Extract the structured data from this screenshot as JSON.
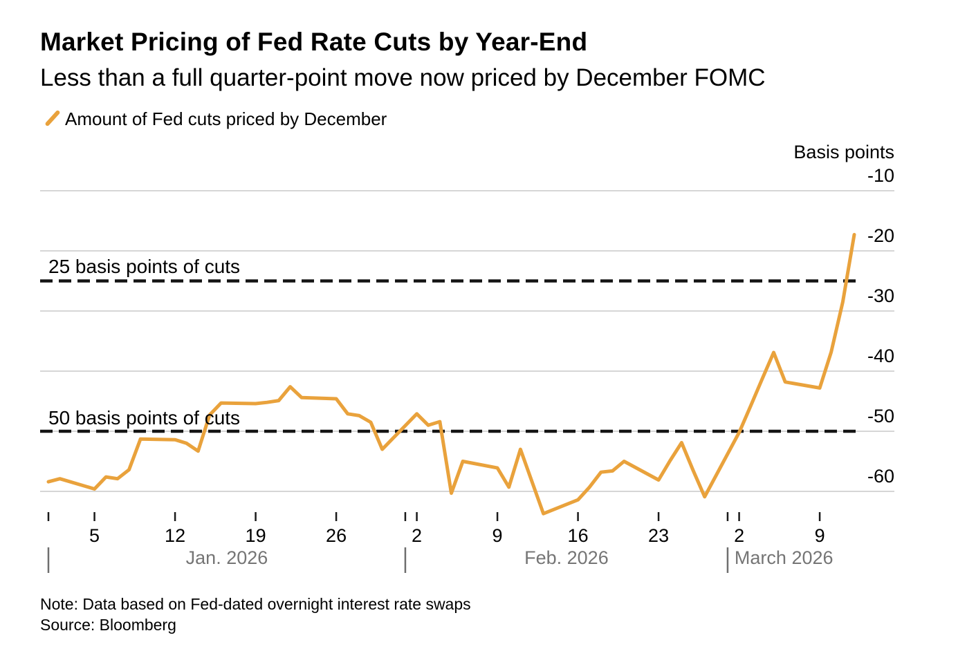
{
  "header": {
    "title": "Market Pricing of Fed Rate Cuts by Year-End",
    "subtitle": "Less than a full quarter-point move now priced by December FOMC"
  },
  "legend": {
    "marker": "orange-slash",
    "label": "Amount of Fed cuts priced by December"
  },
  "footer": {
    "note": "Note: Data based on Fed-dated overnight interest rate swaps",
    "source": "Source: Bloomberg"
  },
  "colors": {
    "series_orange": "#E9A23C",
    "gridline_gray": "#C9C9C9",
    "reference_black": "#141414",
    "tick_black": "#1a1a1a",
    "month_gray": "#757575",
    "separator_gray": "#6e6e6e"
  },
  "chart_data": {
    "type": "line",
    "title": "Market Pricing of Fed Rate Cuts by Year-End",
    "subtitle": "Less than a full quarter-point move now priced by December FOMC",
    "y_axis": {
      "title": "Basis points",
      "side": "right",
      "ticks": [
        -10,
        -20,
        -30,
        -40,
        -50,
        -60
      ],
      "range": [
        -66,
        -10
      ],
      "gridlines": true
    },
    "x_axis": {
      "start_date": "2026-01-01",
      "unit": "days_from_start",
      "week_ticks": [
        {
          "offset": 4,
          "label": "5"
        },
        {
          "offset": 11,
          "label": "12"
        },
        {
          "offset": 18,
          "label": "19"
        },
        {
          "offset": 25,
          "label": "26"
        },
        {
          "offset": 32,
          "label": "2"
        },
        {
          "offset": 39,
          "label": "9"
        },
        {
          "offset": 46,
          "label": "16"
        },
        {
          "offset": 53,
          "label": "23"
        },
        {
          "offset": 60,
          "label": "2"
        },
        {
          "offset": 67,
          "label": "9"
        }
      ],
      "month_boundaries": [
        0,
        31,
        59
      ],
      "months": [
        {
          "label": "Jan. 2026",
          "separator_offset": 0,
          "label_offset": 15.5,
          "align": "middle"
        },
        {
          "label": "Feb. 2026",
          "separator_offset": 31,
          "label_offset": 45.0,
          "align": "middle"
        },
        {
          "label": "March 2026",
          "separator_offset": 59,
          "label_offset": 59.6,
          "align": "start"
        }
      ]
    },
    "reference_lines": [
      {
        "value": -25,
        "label": "25 basis points of cuts",
        "style": "dashed"
      },
      {
        "value": -50,
        "label": "50 basis points of cuts",
        "style": "dashed"
      }
    ],
    "series": [
      {
        "name": "Amount of Fed cuts priced by December",
        "color": "#E9A23C",
        "points": [
          [
            0,
            -58.4
          ],
          [
            1,
            -57.9
          ],
          [
            4,
            -59.6
          ],
          [
            5,
            -57.6
          ],
          [
            6,
            -57.9
          ],
          [
            7,
            -56.4
          ],
          [
            8,
            -51.3
          ],
          [
            11,
            -51.4
          ],
          [
            12,
            -52.0
          ],
          [
            13,
            -53.3
          ],
          [
            14,
            -47.3
          ],
          [
            15,
            -45.3
          ],
          [
            18,
            -45.4
          ],
          [
            19,
            -45.2
          ],
          [
            20,
            -44.9
          ],
          [
            21,
            -42.6
          ],
          [
            22,
            -44.4
          ],
          [
            25,
            -44.6
          ],
          [
            26,
            -47.1
          ],
          [
            27,
            -47.4
          ],
          [
            28,
            -48.5
          ],
          [
            29,
            -53.0
          ],
          [
            32,
            -47.1
          ],
          [
            33,
            -49.0
          ],
          [
            34,
            -48.4
          ],
          [
            35,
            -60.3
          ],
          [
            36,
            -55.0
          ],
          [
            39,
            -56.1
          ],
          [
            40,
            -59.3
          ],
          [
            41,
            -53.0
          ],
          [
            43,
            -63.7
          ],
          [
            46,
            -61.4
          ],
          [
            47,
            -59.3
          ],
          [
            48,
            -56.8
          ],
          [
            49,
            -56.6
          ],
          [
            50,
            -55.0
          ],
          [
            53,
            -58.1
          ],
          [
            54,
            -54.9
          ],
          [
            55,
            -51.9
          ],
          [
            56,
            -56.5
          ],
          [
            57,
            -60.9
          ],
          [
            60,
            -50.2
          ],
          [
            61,
            -45.8
          ],
          [
            62,
            -41.3
          ],
          [
            63,
            -36.9
          ],
          [
            64,
            -41.8
          ],
          [
            67,
            -42.8
          ],
          [
            68,
            -36.8
          ],
          [
            69,
            -28.5
          ],
          [
            70,
            -17.3
          ]
        ]
      }
    ]
  }
}
